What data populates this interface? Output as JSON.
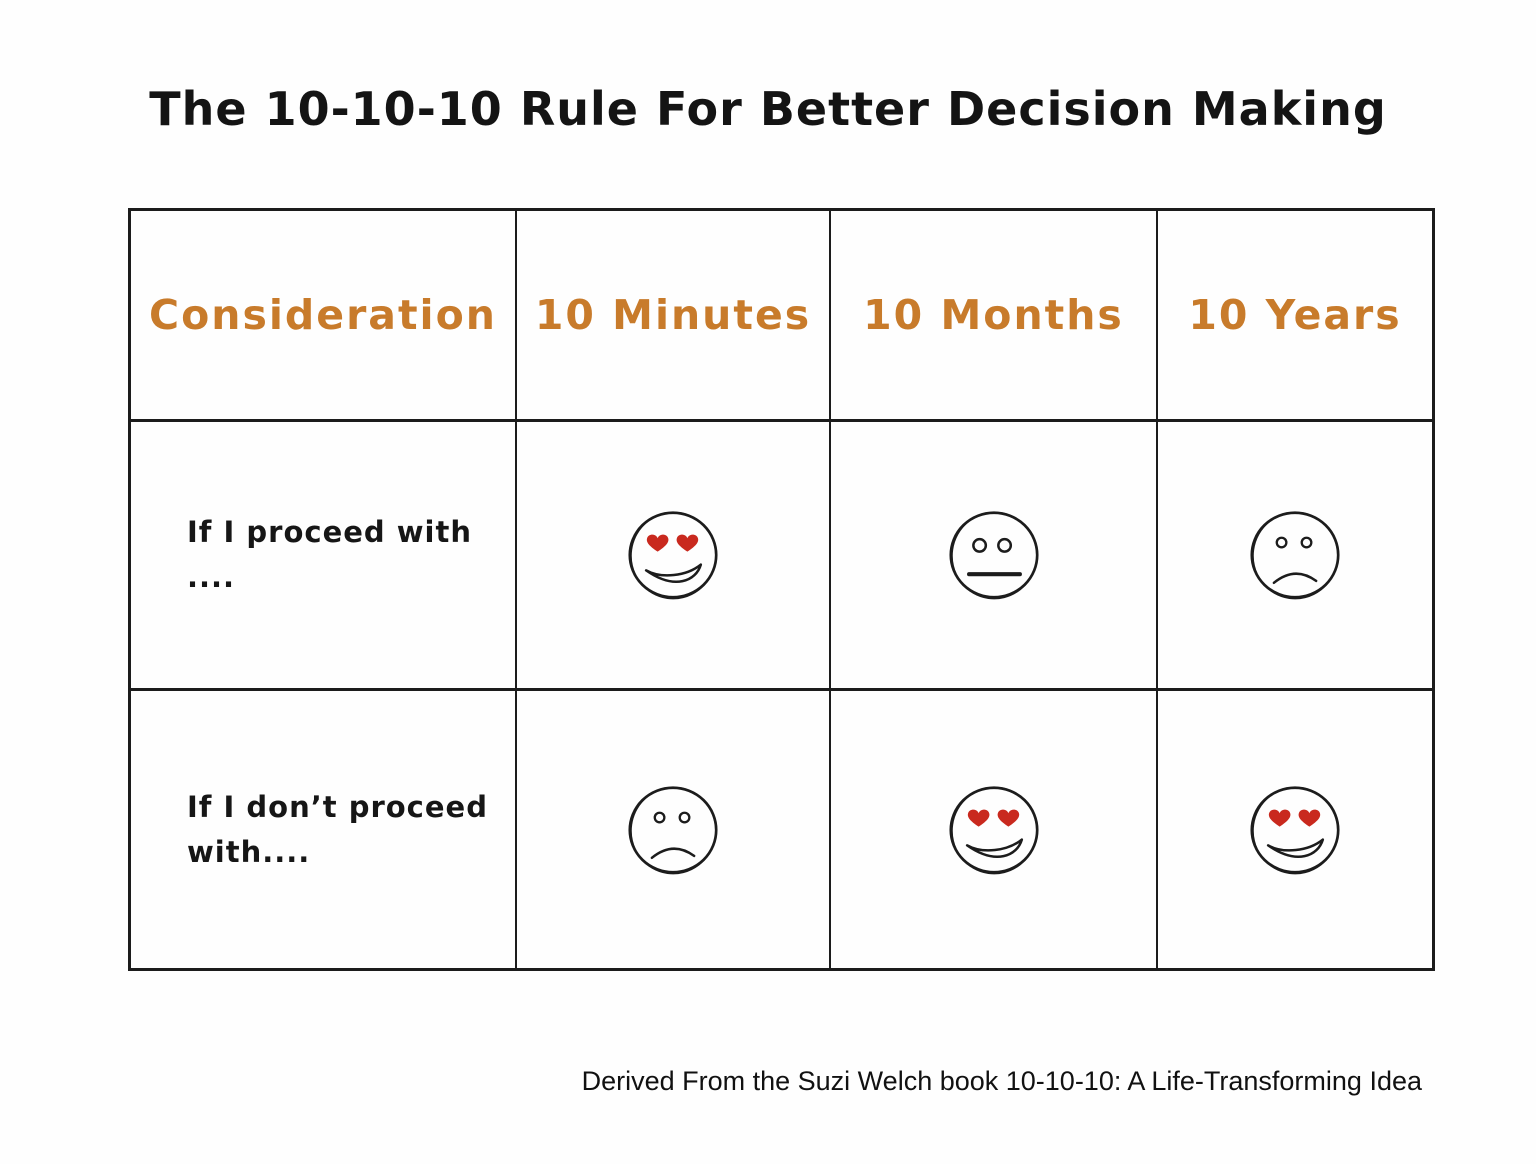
{
  "title": "The 10-10-10 Rule For Better Decision Making",
  "caption": "Derived From the Suzi Welch book 10-10-10: A Life-Transforming Idea",
  "colors": {
    "header_text": "#c87b2b",
    "heart_red": "#c9291e",
    "ink": "#1c1c1c"
  },
  "table": {
    "headers": [
      "Consideration",
      "10 Minutes",
      "10 Months",
      "10 Years"
    ],
    "rows": [
      {
        "label_line1": "If I proceed with",
        "label_line2": "....",
        "cells": [
          "heart-eyes",
          "neutral",
          "sad"
        ]
      },
      {
        "label_line1": "If I don’t proceed",
        "label_line2": "with....",
        "cells": [
          "sad",
          "heart-eyes",
          "heart-eyes"
        ]
      }
    ]
  },
  "face_legend": {
    "heart-eyes": "love-it smiley with red heart eyes",
    "neutral": "neutral face with straight mouth",
    "sad": "sad frowning face"
  }
}
